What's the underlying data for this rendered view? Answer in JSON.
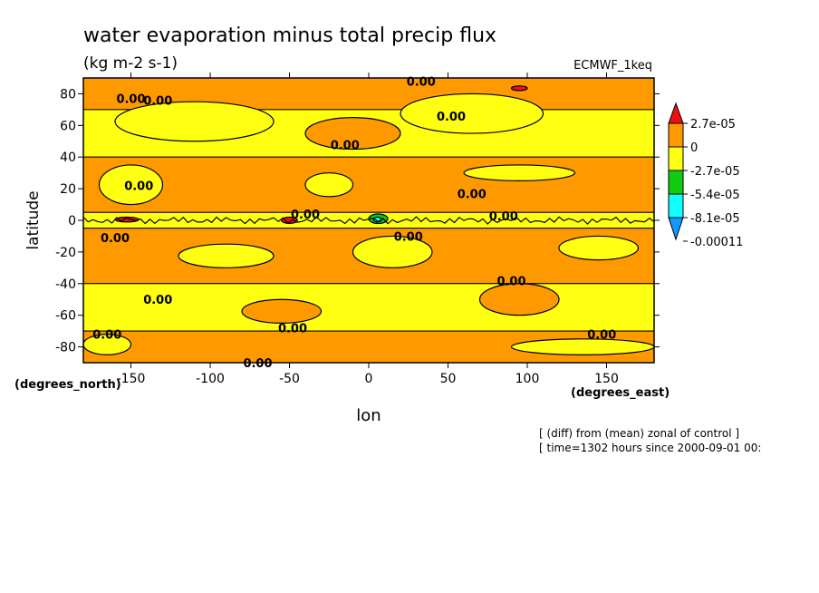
{
  "chart_data": {
    "type": "heatmap",
    "title": "water evaporation minus total precip flux",
    "units": "(kg m-2 s-1)",
    "model": "ECMWF_1keq",
    "xlabel": "lon",
    "ylabel": "latitude",
    "x_units": "(degrees_east)",
    "y_units": "(degrees_north)",
    "xlim": [
      -180,
      180
    ],
    "ylim": [
      -90,
      90
    ],
    "xticks": [
      -150,
      -100,
      -50,
      0,
      50,
      100,
      150
    ],
    "yticks": [
      80,
      60,
      40,
      20,
      0,
      -20,
      -40,
      -60,
      -80
    ],
    "contour_label": "0.00",
    "colorbar": {
      "labels": [
        "2.7e-05",
        "0",
        "-2.7e-05",
        "-5.4e-05",
        "-8.1e-05",
        "-0.00011"
      ],
      "colors": [
        "#ee1111",
        "#ff9900",
        "#ffff11",
        "#11cc11",
        "#11ffff",
        "#1199ff"
      ]
    },
    "bands": [
      {
        "lat_range": [
          70,
          90
        ],
        "dominant": "#ff9900"
      },
      {
        "lat_range": [
          40,
          70
        ],
        "dominant": "#ffff11"
      },
      {
        "lat_range": [
          5,
          40
        ],
        "dominant": "#ff9900"
      },
      {
        "lat_range": [
          -5,
          5
        ],
        "dominant": "#ffff11"
      },
      {
        "lat_range": [
          -40,
          -5
        ],
        "dominant": "#ff9900"
      },
      {
        "lat_range": [
          -70,
          -40
        ],
        "dominant": "#ffff11"
      },
      {
        "lat_range": [
          -90,
          -70
        ],
        "dominant": "#ff9900"
      }
    ],
    "patches": [
      {
        "color": "#ffff11",
        "lon": [
          -160,
          -60
        ],
        "lat": [
          50,
          75
        ]
      },
      {
        "color": "#ffff11",
        "lon": [
          20,
          110
        ],
        "lat": [
          55,
          80
        ]
      },
      {
        "color": "#ff9900",
        "lon": [
          -40,
          20
        ],
        "lat": [
          45,
          65
        ]
      },
      {
        "color": "#ffff11",
        "lon": [
          -170,
          -130
        ],
        "lat": [
          10,
          35
        ]
      },
      {
        "color": "#ffff11",
        "lon": [
          -40,
          -10
        ],
        "lat": [
          15,
          30
        ]
      },
      {
        "color": "#ffff11",
        "lon": [
          60,
          130
        ],
        "lat": [
          25,
          35
        ]
      },
      {
        "color": "#ffff11",
        "lon": [
          -120,
          -60
        ],
        "lat": [
          -30,
          -15
        ]
      },
      {
        "color": "#ffff11",
        "lon": [
          -10,
          40
        ],
        "lat": [
          -30,
          -10
        ]
      },
      {
        "color": "#ffff11",
        "lon": [
          120,
          170
        ],
        "lat": [
          -25,
          -10
        ]
      },
      {
        "color": "#ff9900",
        "lon": [
          -80,
          -30
        ],
        "lat": [
          -65,
          -50
        ]
      },
      {
        "color": "#ff9900",
        "lon": [
          70,
          120
        ],
        "lat": [
          -60,
          -40
        ]
      },
      {
        "color": "#ffff11",
        "lon": [
          -180,
          -150
        ],
        "lat": [
          -85,
          -72
        ]
      },
      {
        "color": "#ffff11",
        "lon": [
          90,
          180
        ],
        "lat": [
          -85,
          -75
        ]
      },
      {
        "color": "#ee1111",
        "lon": [
          -55,
          -45
        ],
        "lat": [
          -2,
          2
        ]
      },
      {
        "color": "#ee1111",
        "lon": [
          -160,
          -145
        ],
        "lat": [
          -1,
          2
        ]
      },
      {
        "color": "#11cc11",
        "lon": [
          0,
          12
        ],
        "lat": [
          -2,
          4
        ]
      },
      {
        "color": "#11ffff",
        "lon": [
          3,
          8
        ],
        "lat": [
          -1,
          2
        ]
      },
      {
        "color": "#ee1111",
        "lon": [
          90,
          100
        ],
        "lat": [
          82,
          85
        ]
      }
    ],
    "contour_label_positions": [
      {
        "lon": -150,
        "lat": 77
      },
      {
        "lon": -133,
        "lat": 76
      },
      {
        "lon": 52,
        "lat": 66
      },
      {
        "lon": -15,
        "lat": 48
      },
      {
        "lon": -145,
        "lat": 22
      },
      {
        "lon": 65,
        "lat": 17
      },
      {
        "lon": -160,
        "lat": -11
      },
      {
        "lon": 25,
        "lat": -10
      },
      {
        "lon": -133,
        "lat": -50
      },
      {
        "lon": 90,
        "lat": -38
      },
      {
        "lon": -48,
        "lat": -68
      },
      {
        "lon": -165,
        "lat": -72
      },
      {
        "lon": 147,
        "lat": -72
      },
      {
        "lon": -70,
        "lat": -90
      },
      {
        "lon": 33,
        "lat": 88
      },
      {
        "lon": -40,
        "lat": 4
      },
      {
        "lon": 85,
        "lat": 3
      }
    ],
    "footnotes": [
      "[ (diff) from (mean) zonal of control ]",
      "[ time=1302 hours since 2000-09-01 00:"
    ]
  }
}
